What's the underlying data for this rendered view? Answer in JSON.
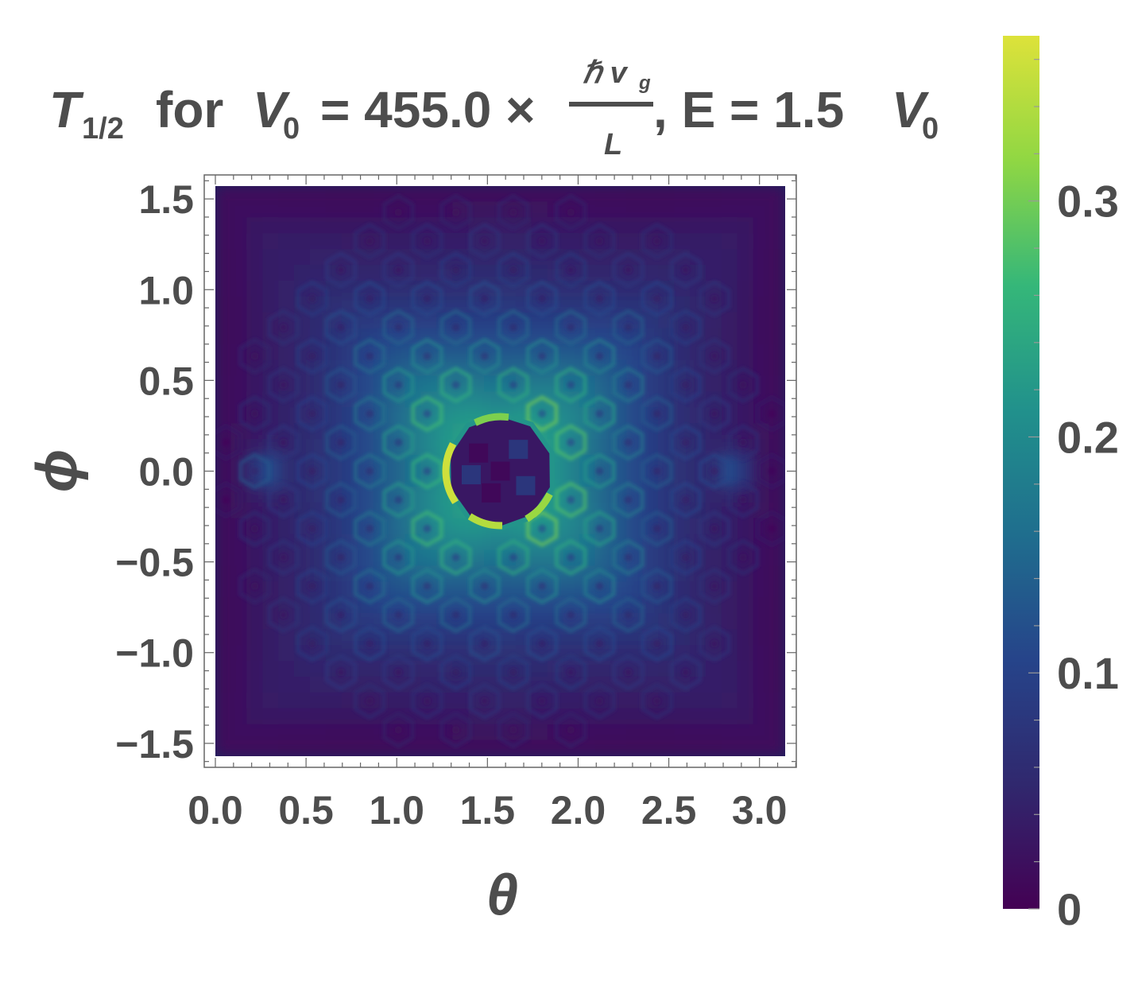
{
  "chart_data": {
    "type": "heatmap",
    "title": {
      "symbol": "T",
      "symbol_subscript": "1/2",
      "for_text": "for",
      "v_symbol": "V",
      "v_subscript": "0",
      "equals_value": "= 455.0 ×",
      "fraction_numerator": "ℏ v",
      "fraction_numerator_subscript": "g",
      "fraction_denominator": "L",
      "energy_text": ", E = 1.5",
      "energy_unit": "V",
      "energy_unit_subscript": "0"
    },
    "xlabel": "θ",
    "ylabel": "ϕ",
    "x_range": [
      0,
      3.14159
    ],
    "y_range": [
      -1.5708,
      1.5708
    ],
    "x_ticks": [
      0.0,
      0.5,
      1.0,
      1.5,
      2.0,
      2.5,
      3.0
    ],
    "x_tick_labels": [
      "0.0",
      "0.5",
      "1.0",
      "1.5",
      "2.0",
      "2.5",
      "3.0"
    ],
    "y_ticks": [
      1.5,
      1.0,
      0.5,
      0.0,
      -0.5,
      -1.0,
      -1.5
    ],
    "y_tick_labels": [
      "1.5",
      "1.0",
      "0.5",
      "0.0",
      "−0.5",
      "−1.0",
      "−1.5"
    ],
    "colorbar": {
      "min": 0,
      "max": 0.37,
      "ticks": [
        0,
        0.1,
        0.2,
        0.3
      ],
      "tick_labels": [
        "0",
        "0.1",
        "0.2",
        "0.3"
      ],
      "colormap": [
        "#440154",
        "#30286e",
        "#26448a",
        "#1f6e8e",
        "#21918c",
        "#35b779",
        "#90d743",
        "#dde23a"
      ]
    },
    "data_description": {
      "background_value": 0.02,
      "peak_center": [
        1.5708,
        0.0
      ],
      "broad_peak_value": 0.2,
      "hole_radius": 0.3,
      "hole_value": 0.03,
      "ring_max_value": 0.36,
      "side_spot_value": 0.12,
      "side_spots_theta": [
        0.28,
        2.86
      ]
    }
  },
  "colors": {
    "text": "#4d4d4d",
    "frame": "#666666",
    "background_plot": "#1b1b5e"
  }
}
